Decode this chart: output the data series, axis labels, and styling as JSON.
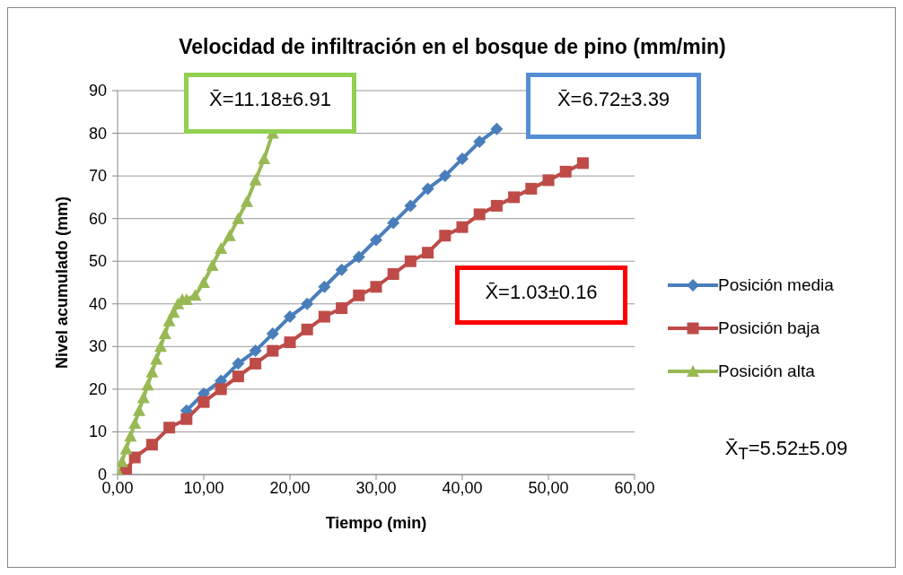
{
  "chart_data": {
    "type": "line",
    "title": "Velocidad de infiltración en el bosque de pino (mm/min)",
    "xlabel": "Tiempo (min)",
    "ylabel": "Nivel  acumulado (mm)",
    "xlim": [
      0,
      60
    ],
    "xticks": [
      {
        "value": 0,
        "label": "0,00"
      },
      {
        "value": 10,
        "label": "10,00"
      },
      {
        "value": 20,
        "label": "20,00"
      },
      {
        "value": 30,
        "label": "30,00"
      },
      {
        "value": 40,
        "label": "40,00"
      },
      {
        "value": 50,
        "label": "50,00"
      },
      {
        "value": 60,
        "label": "60,00"
      }
    ],
    "ylim": [
      0,
      90
    ],
    "yticks": [
      0,
      10,
      20,
      30,
      40,
      50,
      60,
      70,
      80,
      90
    ],
    "grid": "y",
    "legend": "right",
    "line_style": "solid",
    "series": [
      {
        "name": "Posición media",
        "color": "#4a7ebb",
        "marker": "diamond",
        "x": [
          8,
          10,
          12,
          14,
          16,
          18,
          20,
          22,
          24,
          26,
          28,
          30,
          32,
          34,
          36,
          38,
          40,
          42,
          44
        ],
        "values": [
          15,
          19,
          22,
          26,
          29,
          33,
          37,
          40,
          44,
          48,
          51,
          55,
          59,
          63,
          67,
          70,
          74,
          78,
          81
        ]
      },
      {
        "name": "Posición baja",
        "color": "#be4b48",
        "marker": "square",
        "x": [
          1,
          2,
          4,
          6,
          8,
          10,
          12,
          14,
          16,
          18,
          20,
          22,
          24,
          26,
          28,
          30,
          32,
          34,
          36,
          38,
          40,
          42,
          44,
          46,
          48,
          50,
          52,
          54
        ],
        "values": [
          1,
          4,
          7,
          11,
          13,
          17,
          20,
          23,
          26,
          29,
          31,
          34,
          37,
          39,
          42,
          44,
          47,
          50,
          52,
          56,
          58,
          61,
          63,
          65,
          67,
          69,
          71,
          73
        ]
      },
      {
        "name": "Posición alta",
        "color": "#98b954",
        "marker": "triangle",
        "x": [
          0.2,
          0.5,
          1,
          1.5,
          2,
          2.5,
          3,
          3.5,
          4,
          4.5,
          5,
          5.5,
          6,
          6.5,
          7,
          7.5,
          8,
          9,
          10,
          11,
          12,
          13,
          14,
          15,
          16,
          17,
          18
        ],
        "values": [
          0,
          3,
          6,
          9,
          12,
          15,
          18,
          21,
          24,
          27,
          30,
          33,
          36,
          38,
          40,
          41,
          41,
          42,
          45,
          49,
          53,
          56,
          60,
          64,
          69,
          74,
          80
        ]
      }
    ],
    "annotations": [
      "X̄=11.18±6.91",
      "X̄=6.72±3.39",
      "X̄=1.03±0.16",
      "X̄$_{T}$=5.52±5.09"
    ]
  }
}
